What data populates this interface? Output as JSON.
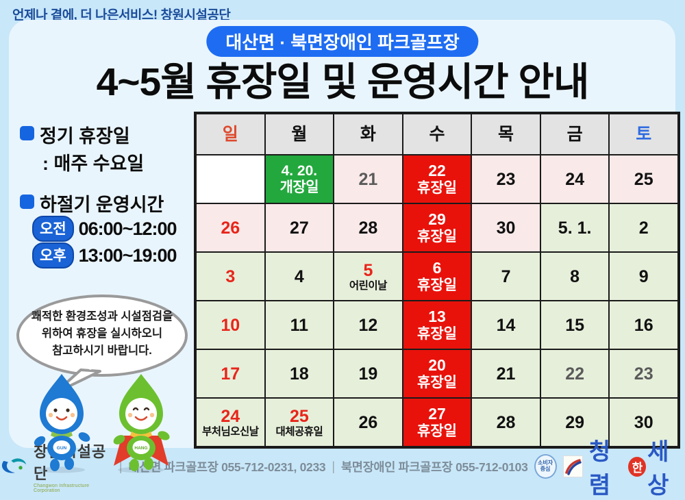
{
  "page": {
    "slogan": "언제나 곁에, 더 나은서비스!  창원시설공단",
    "badge": "대산면 · 북면장애인 파크골프장",
    "title": "4~5월 휴장일 및 운영시간 안내"
  },
  "sidebar": {
    "regular_label": "정기 휴장일",
    "regular_value": ": 매주 수요일",
    "summer_label": "하절기 운영시간",
    "hours": [
      {
        "period": "오전",
        "time": "06:00~12:00"
      },
      {
        "period": "오후",
        "time": "13:00~19:00"
      }
    ],
    "speech_bubble": [
      "쾌적한 환경조성과 시설점검을",
      "위하여 휴장을 실시하오니",
      "참고하시기 바랍니다."
    ],
    "mascots": [
      {
        "name": "GUN"
      },
      {
        "name": "HANG"
      }
    ]
  },
  "calendar": {
    "weekdays": [
      {
        "label": "일",
        "c": "sun"
      },
      {
        "label": "월"
      },
      {
        "label": "화"
      },
      {
        "label": "수"
      },
      {
        "label": "목"
      },
      {
        "label": "금"
      },
      {
        "label": "토",
        "c": "sat"
      }
    ],
    "rows": [
      [
        {
          "d": "",
          "t": "empty"
        },
        {
          "d": "4. 20.",
          "n": "개장일",
          "t": "open"
        },
        {
          "d": "21",
          "t": "april",
          "c": "gray"
        },
        {
          "d": "22",
          "n": "휴장일",
          "t": "closed"
        },
        {
          "d": "23",
          "t": "april"
        },
        {
          "d": "24",
          "t": "april"
        },
        {
          "d": "25",
          "t": "april"
        }
      ],
      [
        {
          "d": "26",
          "t": "april",
          "c": "red"
        },
        {
          "d": "27",
          "t": "april"
        },
        {
          "d": "28",
          "t": "april"
        },
        {
          "d": "29",
          "n": "휴장일",
          "t": "closed"
        },
        {
          "d": "30",
          "t": "april"
        },
        {
          "d": "5. 1.",
          "t": "may"
        },
        {
          "d": "2",
          "t": "may"
        }
      ],
      [
        {
          "d": "3",
          "t": "may",
          "c": "red"
        },
        {
          "d": "4",
          "t": "may"
        },
        {
          "d": "5",
          "n": "어린이날",
          "t": "may",
          "c": "red"
        },
        {
          "d": "6",
          "n": "휴장일",
          "t": "closed"
        },
        {
          "d": "7",
          "t": "may"
        },
        {
          "d": "8",
          "t": "may"
        },
        {
          "d": "9",
          "t": "may"
        }
      ],
      [
        {
          "d": "10",
          "t": "may",
          "c": "red"
        },
        {
          "d": "11",
          "t": "may"
        },
        {
          "d": "12",
          "t": "may"
        },
        {
          "d": "13",
          "n": "휴장일",
          "t": "closed"
        },
        {
          "d": "14",
          "t": "may"
        },
        {
          "d": "15",
          "t": "may"
        },
        {
          "d": "16",
          "t": "may"
        }
      ],
      [
        {
          "d": "17",
          "t": "may",
          "c": "red"
        },
        {
          "d": "18",
          "t": "may"
        },
        {
          "d": "19",
          "t": "may"
        },
        {
          "d": "20",
          "n": "휴장일",
          "t": "closed"
        },
        {
          "d": "21",
          "t": "may"
        },
        {
          "d": "22",
          "t": "may",
          "c": "gray"
        },
        {
          "d": "23",
          "t": "may",
          "c": "gray"
        }
      ],
      [
        {
          "d": "24",
          "n": "부처님오신날",
          "t": "may",
          "c": "red"
        },
        {
          "d": "25",
          "n": "대체공휴일",
          "t": "may",
          "c": "red"
        },
        {
          "d": "26",
          "t": "may"
        },
        {
          "d": "27",
          "n": "휴장일",
          "t": "closed"
        },
        {
          "d": "28",
          "t": "may"
        },
        {
          "d": "29",
          "t": "may"
        },
        {
          "d": "30",
          "t": "may"
        }
      ]
    ],
    "colors": {
      "closed_bg": "#e8120b",
      "open_bg": "#23a83e",
      "april_bg": "#f9e9e9",
      "may_bg": "#e6efda",
      "sunday": "#de4a2e",
      "saturday": "#2f6be0",
      "red_day": "#e8251a"
    }
  },
  "footer": {
    "org": "창원시설공단",
    "org_sub": "Changwon Infrastructure Corporation",
    "sep1": "|",
    "contact1": "대산면 파크골프장 055-712-0231, 0233",
    "sep2": "|",
    "contact2": "북면장애인 파크골프장 055-712-0103",
    "cert_line1": "소비자",
    "cert_line2": "중심",
    "clean_pre": "청렴",
    "clean_han": "한",
    "clean_post": "세상"
  }
}
